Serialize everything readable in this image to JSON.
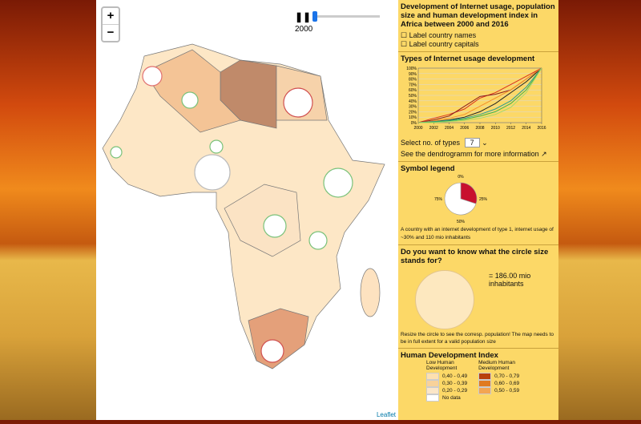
{
  "map": {
    "zoom_in": "+",
    "zoom_out": "−",
    "year": "2000",
    "attribution": "Leaflet"
  },
  "panel": {
    "title": "Development of Internet usage, population size and human development index in Africa between 2000 and 2016",
    "checkboxes": [
      "Label country names",
      "Label country capitals"
    ]
  },
  "chart_data": {
    "type": "line",
    "title": "Types of Internet usage development",
    "x": [
      2000,
      2002,
      2004,
      2006,
      2008,
      2010,
      2012,
      2014,
      2016
    ],
    "xlim": [
      2000,
      2016
    ],
    "xticks": [
      2000,
      2002,
      2004,
      2006,
      2008,
      2010,
      2012,
      2014,
      2016
    ],
    "ylim": [
      0,
      100
    ],
    "yticks": [
      {
        "value": 0,
        "label": "0%"
      },
      {
        "value": 10,
        "label": "10%"
      },
      {
        "value": 20,
        "label": "20%"
      },
      {
        "value": 30,
        "label": "30%"
      },
      {
        "value": 40,
        "label": "40%"
      },
      {
        "value": 50,
        "label": "50%"
      },
      {
        "value": 60,
        "label": "60%"
      },
      {
        "value": 70,
        "label": "70%"
      },
      {
        "value": 80,
        "label": "80%"
      },
      {
        "value": 90,
        "label": "90%"
      },
      {
        "value": 100,
        "label": "100%"
      }
    ],
    "grid": true,
    "series": [
      {
        "color": "#d7301f",
        "values": [
          0,
          8,
          15,
          25,
          45,
          55,
          70,
          85,
          100
        ]
      },
      {
        "color": "#8b1a1a",
        "values": [
          0,
          5,
          12,
          30,
          48,
          52,
          60,
          80,
          100
        ]
      },
      {
        "color": "#222222",
        "values": [
          0,
          2,
          5,
          10,
          20,
          35,
          55,
          75,
          100
        ]
      },
      {
        "color": "#f28e2b",
        "values": [
          0,
          3,
          8,
          15,
          30,
          45,
          60,
          80,
          100
        ]
      },
      {
        "color": "#2a9d8f",
        "values": [
          0,
          2,
          4,
          8,
          15,
          25,
          40,
          65,
          100
        ]
      },
      {
        "color": "#3cb44b",
        "values": [
          0,
          1,
          3,
          6,
          12,
          20,
          35,
          60,
          100
        ]
      },
      {
        "color": "#a6d96a",
        "values": [
          0,
          0,
          2,
          4,
          8,
          15,
          28,
          55,
          100
        ]
      }
    ]
  },
  "types_control": {
    "label": "Select no. of types",
    "selected": "7",
    "link": "See the dendrogramm for more information"
  },
  "symbol_legend": {
    "title": "Symbol legend",
    "slices": [
      {
        "value": 30,
        "color": "#c8102e"
      },
      {
        "value": 70,
        "color": "#ffffff"
      }
    ],
    "ring_ticks": [
      {
        "value": 0,
        "label": "0%"
      },
      {
        "value": 25,
        "label": "25%"
      },
      {
        "value": 50,
        "label": "50%"
      },
      {
        "value": 75,
        "label": "75%"
      }
    ],
    "caption": "A country with an internet development of type 1, internet usage of ~30% and 110 mio inhabitants"
  },
  "circle_size": {
    "question": "Do you want to know what the circle size stands for?",
    "result": "= 186.00 mio inhabitants",
    "hint": "Resize the circle to see the corresp. population! The map needs to be in full extent for a valid population size"
  },
  "hdi": {
    "title": "Human Development Index",
    "groups": [
      {
        "name": "Low Human Development",
        "classes": [
          "0,40 - 0,49",
          "0,30 - 0,39",
          "0,20 - 0,29",
          "No data"
        ]
      },
      {
        "name": "Medium Human Development",
        "classes": [
          "0,70 - 0,79",
          "0,60 - 0,69",
          "0,50 - 0,59"
        ]
      }
    ]
  }
}
